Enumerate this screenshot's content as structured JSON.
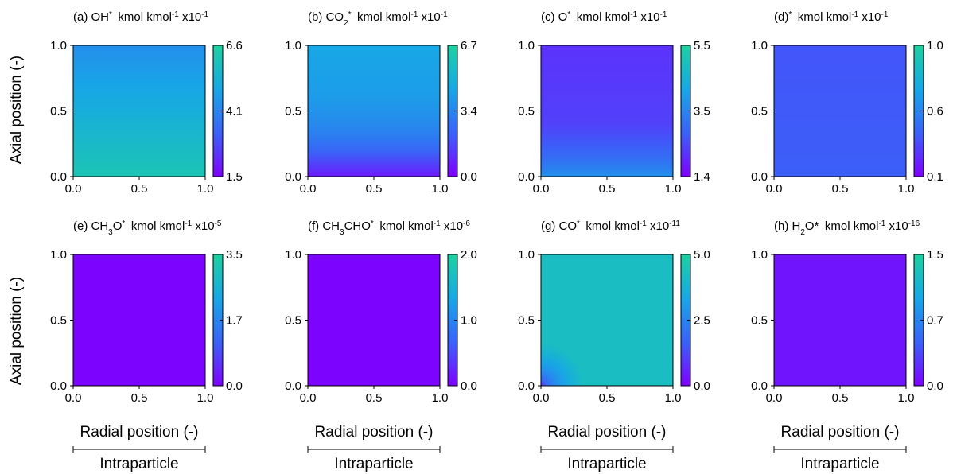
{
  "figure": {
    "y_axis_label": "Axial position (-)",
    "x_axis_label": "Radial position (-)",
    "bracket_label": "Intraparticle"
  },
  "chart_data": [
    {
      "type": "heatmap",
      "label": "(a) OH",
      "sup": "*",
      "sub": "",
      "units": "kmol kmol",
      "units_exp": "-1",
      "scale": "x10",
      "scale_exp": "-1",
      "xlim": [
        0,
        1
      ],
      "ylim": [
        0,
        1
      ],
      "x_ticks": [
        "0.0",
        "0.5",
        "1.0"
      ],
      "y_ticks": [
        "0.0",
        "0.5",
        "1.0"
      ],
      "colorbar_ticks": [
        "1.5",
        "4.1",
        "6.6"
      ],
      "colorbar_range": [
        1.5,
        6.6
      ],
      "field": {
        "axis": "y",
        "stops": [
          [
            0,
            6.1
          ],
          [
            1,
            4.3
          ]
        ]
      }
    },
    {
      "type": "heatmap",
      "label": "(b) CO",
      "sup": "*",
      "sub": "2",
      "units": "kmol kmol",
      "units_exp": "-1",
      "scale": "x10",
      "scale_exp": "-1",
      "xlim": [
        0,
        1
      ],
      "ylim": [
        0,
        1
      ],
      "x_ticks": [
        "0.0",
        "0.5",
        "1.0"
      ],
      "y_ticks": [
        "0.0",
        "0.5",
        "1.0"
      ],
      "colorbar_ticks": [
        "0.0",
        "3.4",
        "6.7"
      ],
      "colorbar_range": [
        0.0,
        6.7
      ],
      "field": {
        "axis": "y",
        "stops": [
          [
            0,
            0.6
          ],
          [
            0.15,
            2.0
          ],
          [
            0.35,
            3.4
          ],
          [
            0.6,
            4.1
          ],
          [
            1,
            4.5
          ]
        ]
      }
    },
    {
      "type": "heatmap",
      "label": "(c) O",
      "sup": "*",
      "sub": "",
      "units": "kmol kmol",
      "units_exp": "-1",
      "scale": "x10",
      "scale_exp": "-1",
      "xlim": [
        0,
        1
      ],
      "ylim": [
        0,
        1
      ],
      "x_ticks": [
        "0.0",
        "0.5",
        "1.0"
      ],
      "y_ticks": [
        "0.0",
        "0.5",
        "1.0"
      ],
      "colorbar_ticks": [
        "1.4",
        "3.5",
        "5.5"
      ],
      "colorbar_range": [
        1.4,
        5.5
      ],
      "field": {
        "axis": "y",
        "stops": [
          [
            0,
            3.7
          ],
          [
            0.15,
            2.9
          ],
          [
            0.4,
            2.3
          ],
          [
            1,
            2.1
          ]
        ]
      }
    },
    {
      "type": "heatmap",
      "label": "(d)",
      "sup": "*",
      "sub": "",
      "units": "kmol kmol",
      "units_exp": "-1",
      "scale": "x10",
      "scale_exp": "-1",
      "xlim": [
        0,
        1
      ],
      "ylim": [
        0,
        1
      ],
      "x_ticks": [
        "0.0",
        "0.5",
        "1.0"
      ],
      "y_ticks": [
        "0.0",
        "0.5",
        "1.0"
      ],
      "colorbar_ticks": [
        "0.1",
        "0.6",
        "1.0"
      ],
      "colorbar_range": [
        0.1,
        1.0
      ],
      "field": {
        "axis": "y",
        "stops": [
          [
            0,
            0.39
          ],
          [
            1,
            0.36
          ]
        ]
      }
    },
    {
      "type": "heatmap",
      "label": "(e) CH",
      "label2": "O",
      "sub": "3",
      "sup": "*",
      "units": "kmol kmol",
      "units_exp": "-1",
      "scale": "x10",
      "scale_exp": "-5",
      "xlim": [
        0,
        1
      ],
      "ylim": [
        0,
        1
      ],
      "x_ticks": [
        "0.0",
        "0.5",
        "1.0"
      ],
      "y_ticks": [
        "0.0",
        "0.5",
        "1.0"
      ],
      "colorbar_ticks": [
        "0.0",
        "1.7",
        "3.5"
      ],
      "colorbar_range": [
        0.0,
        3.5
      ],
      "field": {
        "axis": "y",
        "stops": [
          [
            0,
            0.05
          ],
          [
            1,
            0.05
          ]
        ]
      }
    },
    {
      "type": "heatmap",
      "label": "(f) CH",
      "label2": "CHO",
      "sub": "3",
      "sup": "*",
      "units": "kmol kmol",
      "units_exp": "-1",
      "scale": "x10",
      "scale_exp": "-6",
      "xlim": [
        0,
        1
      ],
      "ylim": [
        0,
        1
      ],
      "x_ticks": [
        "0.0",
        "0.5",
        "1.0"
      ],
      "y_ticks": [
        "0.0",
        "0.5",
        "1.0"
      ],
      "colorbar_ticks": [
        "0.0",
        "1.0",
        "2.0"
      ],
      "colorbar_range": [
        0.0,
        2.0
      ],
      "field": {
        "axis": "y",
        "stops": [
          [
            0,
            0.03
          ],
          [
            1,
            0.03
          ]
        ]
      }
    },
    {
      "type": "heatmap",
      "label": "(g) CO",
      "sup": "*",
      "sub": "",
      "units": "kmol kmol",
      "units_exp": "-1",
      "scale": "x10",
      "scale_exp": "-11",
      "xlim": [
        0,
        1
      ],
      "ylim": [
        0,
        1
      ],
      "x_ticks": [
        "0.0",
        "0.5",
        "1.0"
      ],
      "y_ticks": [
        "0.0",
        "0.5",
        "1.0"
      ],
      "colorbar_ticks": [
        "0.0",
        "2.5",
        "5.0"
      ],
      "colorbar_range": [
        0.0,
        5.0
      ],
      "field": {
        "axis": "corner",
        "base": 4.2,
        "low": 0.5,
        "radius": 0.32
      }
    },
    {
      "type": "heatmap",
      "label": "(h) H",
      "label2": "O*",
      "sub": "2",
      "sup": "",
      "units": "kmol kmol",
      "units_exp": "-1",
      "scale": "x10",
      "scale_exp": "-16",
      "xlim": [
        0,
        1
      ],
      "ylim": [
        0,
        1
      ],
      "x_ticks": [
        "0.0",
        "0.5",
        "1.0"
      ],
      "y_ticks": [
        "0.0",
        "0.5",
        "1.0"
      ],
      "colorbar_ticks": [
        "0.0",
        "0.7",
        "1.5"
      ],
      "colorbar_range": [
        0.0,
        1.5
      ],
      "field": {
        "axis": "y",
        "stops": [
          [
            0,
            0.1
          ],
          [
            1,
            0.1
          ]
        ]
      }
    }
  ],
  "colormap": [
    "#7f00ff",
    "#3a62f8",
    "#17a7e6",
    "#1dd1a0"
  ]
}
